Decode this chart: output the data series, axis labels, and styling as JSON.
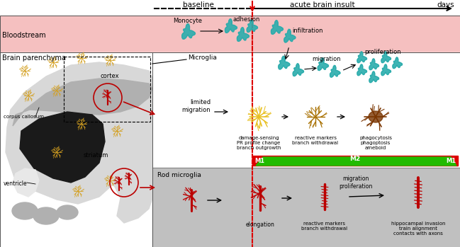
{
  "title_baseline": "baseline",
  "title_acute": "acute brain insult",
  "title_days": "days",
  "bloodstream_label": "Bloodstream",
  "parenchyma_label": "Brain parenchyma",
  "microglia_label": "Microglia",
  "rod_label": "Rod microglia",
  "monocyte_label": "Monocyte",
  "adhesion_label": "adhesion",
  "infiltration_label": "infiltration",
  "migration_label": "migration",
  "proliferation_label": "proliferation",
  "limited_migration_label": "limited\nmigration",
  "damage_label": "damage-sensing\nPR profile change\nbranch outgrowth",
  "reactive_label": "reactive markers\nbranch withdrawal",
  "phago_label": "phagocytosis\nphagoptosis\nameboid",
  "elongation_label": "elongation",
  "reactive2_label": "reactive markers\nbranch withdrawal",
  "hippo_label": "hippocampal invasion\ntrain alignment\ncontacts with axons",
  "migration2_label": "migration\nproliferation",
  "corpus_label": "corpus callosum",
  "cortex_label": "cortex",
  "striatum_label": "striatum",
  "ventricle_label": "ventricle",
  "M1_label": "M1",
  "M2_label": "M2",
  "bg_bloodstream": "#f5c0c0",
  "bg_bottom": "#c0c0c0",
  "color_red_line": "#dd0000",
  "color_teal": "#2aacac",
  "color_gold_bright": "#e8c020",
  "color_gold_mid": "#b08800",
  "color_brown": "#7a3500",
  "color_red_cells": "#bb0000",
  "color_green": "#22bb00",
  "color_red_bar": "#dd0000",
  "color_gray_corpus": "#b0b0b0",
  "color_gray_outer": "#d8d8d8",
  "color_black_bg": "#1a1a1a",
  "color_vent": "#e8e8e8"
}
